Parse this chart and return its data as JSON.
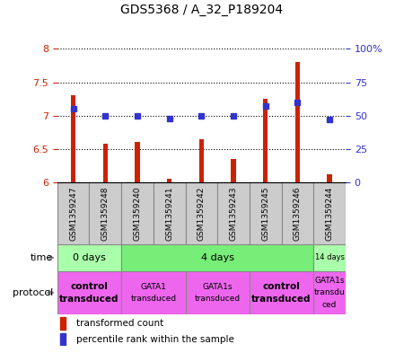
{
  "title": "GDS5368 / A_32_P189204",
  "samples": [
    "GSM1359247",
    "GSM1359248",
    "GSM1359240",
    "GSM1359241",
    "GSM1359242",
    "GSM1359243",
    "GSM1359245",
    "GSM1359246",
    "GSM1359244"
  ],
  "transformed_counts": [
    7.3,
    6.58,
    6.6,
    6.05,
    6.65,
    6.35,
    7.25,
    7.8,
    6.12
  ],
  "percentile_ranks": [
    55,
    50,
    50,
    48,
    50,
    50,
    57,
    60,
    47
  ],
  "ylim_left": [
    6.0,
    8.0
  ],
  "ylim_right": [
    0,
    100
  ],
  "yticks_left": [
    6.0,
    6.5,
    7.0,
    7.5,
    8.0
  ],
  "yticks_right": [
    0,
    25,
    50,
    75,
    100
  ],
  "ytick_labels_left": [
    "6",
    "6.5",
    "7",
    "7.5",
    "8"
  ],
  "ytick_labels_right": [
    "0",
    "25",
    "50",
    "75",
    "100%"
  ],
  "bar_color": "#cc2200",
  "dot_color": "#3333cc",
  "bar_width": 0.15,
  "time_groups": [
    {
      "label": "0 days",
      "start": 0,
      "end": 2,
      "color": "#aaffaa"
    },
    {
      "label": "4 days",
      "start": 2,
      "end": 8,
      "color": "#77ee77"
    },
    {
      "label": "14 days",
      "start": 8,
      "end": 9,
      "color": "#aaffaa"
    }
  ],
  "protocol_groups": [
    {
      "label": "control\ntransduced",
      "start": 0,
      "end": 2,
      "color": "#ee66ee",
      "bold": true
    },
    {
      "label": "GATA1\ntransduced",
      "start": 2,
      "end": 4,
      "color": "#ee66ee",
      "bold": false
    },
    {
      "label": "GATA1s\ntransduced",
      "start": 4,
      "end": 6,
      "color": "#ee66ee",
      "bold": false
    },
    {
      "label": "control\ntransduced",
      "start": 6,
      "end": 8,
      "color": "#ee66ee",
      "bold": true
    },
    {
      "label": "GATA1s\ntransdu\nced",
      "start": 8,
      "end": 9,
      "color": "#ee66ee",
      "bold": false
    }
  ],
  "legend_items": [
    {
      "color": "#cc2200",
      "label": "transformed count"
    },
    {
      "color": "#3333cc",
      "label": "percentile rank within the sample"
    }
  ],
  "label_bg_color": "#cccccc",
  "label_border_color": "#888888"
}
